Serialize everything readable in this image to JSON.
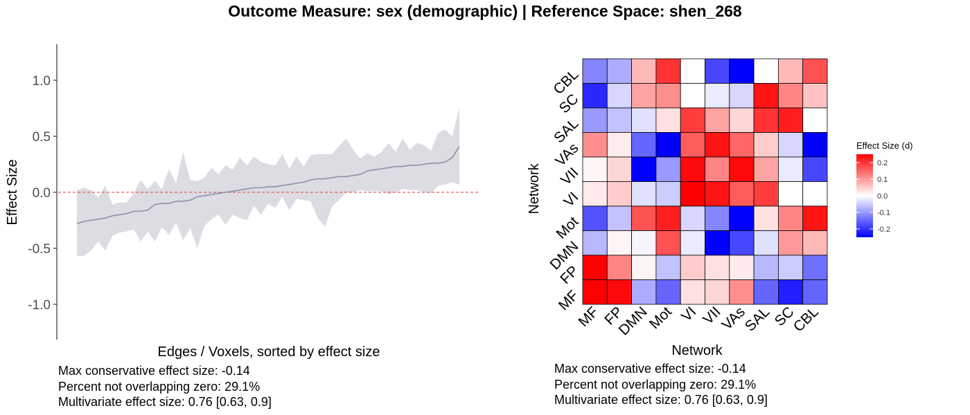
{
  "title": "Outcome Measure: sex (demographic)   |  Reference Space: shen_268",
  "colors": {
    "ribbon": "#dcdce2",
    "line": "#8e8ea8",
    "zero_line": "#e05a5a",
    "low": "#0000ff",
    "mid": "#ffffff",
    "high": "#ff0000"
  },
  "chart_data": [
    {
      "type": "area",
      "name": "effect-size-ribbon",
      "xlabel": "Edges / Voxels, sorted by effect size",
      "ylabel": "Effect Size",
      "ylim": [
        -1.3,
        1.3
      ],
      "yticks": [
        -1.0,
        -0.5,
        0.0,
        0.5,
        1.0
      ],
      "ytick_labels": [
        "-1.0",
        "-0.5",
        "0.0",
        "0.5",
        "1.0"
      ],
      "zero_line": 0,
      "x": [
        1,
        2,
        3,
        4,
        5,
        6,
        7,
        8,
        9,
        10,
        11,
        12,
        13,
        14,
        15,
        16,
        17,
        18,
        19,
        20,
        21,
        22,
        23,
        24,
        25,
        26,
        27,
        28,
        29,
        30,
        31,
        32,
        33,
        34,
        35,
        36,
        37,
        38,
        39,
        40,
        41,
        42,
        43,
        44,
        45,
        46,
        47,
        48,
        49,
        50,
        51,
        52,
        53,
        54,
        55
      ],
      "estimate": [
        -0.28,
        -0.26,
        -0.25,
        -0.24,
        -0.23,
        -0.21,
        -0.2,
        -0.19,
        -0.17,
        -0.17,
        -0.16,
        -0.11,
        -0.1,
        -0.1,
        -0.08,
        -0.08,
        -0.07,
        -0.04,
        -0.03,
        -0.02,
        -0.01,
        0.0,
        0.01,
        0.02,
        0.03,
        0.04,
        0.04,
        0.05,
        0.05,
        0.06,
        0.07,
        0.08,
        0.09,
        0.11,
        0.12,
        0.12,
        0.13,
        0.14,
        0.14,
        0.15,
        0.16,
        0.19,
        0.2,
        0.21,
        0.22,
        0.23,
        0.23,
        0.24,
        0.24,
        0.25,
        0.26,
        0.26,
        0.27,
        0.31,
        0.41
      ],
      "lower": [
        -0.57,
        -0.57,
        -0.52,
        -0.44,
        -0.52,
        -0.39,
        -0.36,
        -0.35,
        -0.33,
        -0.44,
        -0.35,
        -0.44,
        -0.31,
        -0.38,
        -0.27,
        -0.43,
        -0.32,
        -0.5,
        -0.3,
        -0.24,
        -0.2,
        -0.29,
        -0.2,
        -0.23,
        -0.25,
        -0.12,
        -0.2,
        -0.1,
        -0.14,
        -0.04,
        -0.16,
        -0.06,
        -0.07,
        -0.08,
        -0.23,
        -0.31,
        -0.13,
        -0.07,
        -0.0,
        0.0,
        0.02,
        0.01,
        0.01,
        0.01,
        -0.02,
        0.0,
        0.03,
        0.02,
        0.02,
        0.0,
        -0.01,
        0.06,
        0.07,
        0.09,
        0.07
      ],
      "upper": [
        0.02,
        0.04,
        0.02,
        -0.05,
        0.06,
        -0.11,
        -0.09,
        -0.09,
        -0.01,
        0.11,
        0.03,
        0.1,
        0.03,
        0.21,
        0.08,
        0.36,
        0.11,
        0.1,
        0.13,
        0.22,
        0.16,
        0.24,
        0.2,
        0.31,
        0.24,
        0.32,
        0.27,
        0.25,
        0.24,
        0.34,
        0.21,
        0.32,
        0.23,
        0.33,
        0.34,
        0.34,
        0.34,
        0.41,
        0.48,
        0.38,
        0.3,
        0.35,
        0.32,
        0.36,
        0.44,
        0.36,
        0.48,
        0.38,
        0.44,
        0.42,
        0.37,
        0.53,
        0.56,
        0.5,
        0.75
      ],
      "stats": [
        "Max conservative effect size: -0.14",
        "Percent not overlapping zero: 29.1%",
        "Multivariate effect size: 0.76 [0.63, 0.9]"
      ]
    },
    {
      "type": "heatmap",
      "name": "network-effect-matrix",
      "xlabel": "Network",
      "ylabel": "Network",
      "x_categories": [
        "MF",
        "FP",
        "DMN",
        "Mot",
        "VI",
        "VII",
        "VAs",
        "SAL",
        "SC",
        "CBL"
      ],
      "y_categories": [
        "MF",
        "FP",
        "DMN",
        "Mot",
        "VI",
        "VII",
        "VAs",
        "SAL",
        "SC",
        "CBL"
      ],
      "legend_title": "Effect Size (d)",
      "legend_ticks": [
        0.2,
        0.1,
        0.0,
        -0.1,
        -0.2
      ],
      "legend_tick_labels": [
        "0.2",
        "0.1",
        "0.0",
        "-0.1",
        "-0.2"
      ],
      "color_range": [
        -0.25,
        0.25
      ],
      "values_top_to_bottom": [
        {
          "row": "CBL",
          "values": [
            -0.12,
            -0.08,
            0.07,
            0.2,
            0.0,
            -0.18,
            -0.25,
            0.0,
            0.07,
            0.17
          ]
        },
        {
          "row": "SC",
          "values": [
            -0.21,
            -0.04,
            0.09,
            0.11,
            0.0,
            -0.02,
            -0.04,
            0.23,
            0.12,
            0.06
          ]
        },
        {
          "row": "SAL",
          "values": [
            -0.1,
            -0.06,
            -0.03,
            0.03,
            0.19,
            0.09,
            0.04,
            0.2,
            0.22,
            0.0
          ]
        },
        {
          "row": "VAs",
          "values": [
            0.11,
            0.02,
            -0.15,
            -0.25,
            0.16,
            0.23,
            0.15,
            0.05,
            -0.04,
            -0.25
          ]
        },
        {
          "row": "VII",
          "values": [
            0.01,
            0.04,
            -0.25,
            -0.1,
            0.24,
            0.12,
            0.24,
            0.09,
            -0.02,
            -0.18
          ]
        },
        {
          "row": "VI",
          "values": [
            0.02,
            0.05,
            -0.03,
            -0.05,
            0.25,
            0.23,
            0.16,
            0.19,
            0.0,
            0.0
          ]
        },
        {
          "row": "Mot",
          "values": [
            -0.17,
            -0.06,
            0.17,
            0.22,
            -0.04,
            -0.12,
            -0.25,
            0.03,
            0.12,
            0.23
          ]
        },
        {
          "row": "DMN",
          "values": [
            -0.07,
            0.01,
            -0.01,
            0.17,
            -0.02,
            -0.25,
            -0.18,
            -0.03,
            0.1,
            0.07
          ]
        },
        {
          "row": "FP",
          "values": [
            0.25,
            0.12,
            0.01,
            -0.06,
            0.05,
            0.03,
            0.02,
            -0.07,
            -0.05,
            -0.14
          ]
        },
        {
          "row": "MF",
          "values": [
            0.25,
            0.24,
            -0.08,
            -0.15,
            0.03,
            0.04,
            0.11,
            -0.15,
            -0.22,
            -0.15
          ]
        }
      ],
      "stats": [
        "Max conservative effect size: -0.14",
        "Percent not overlapping zero: 29.1%",
        "Multivariate effect size: 0.76 [0.63, 0.9]"
      ]
    }
  ]
}
